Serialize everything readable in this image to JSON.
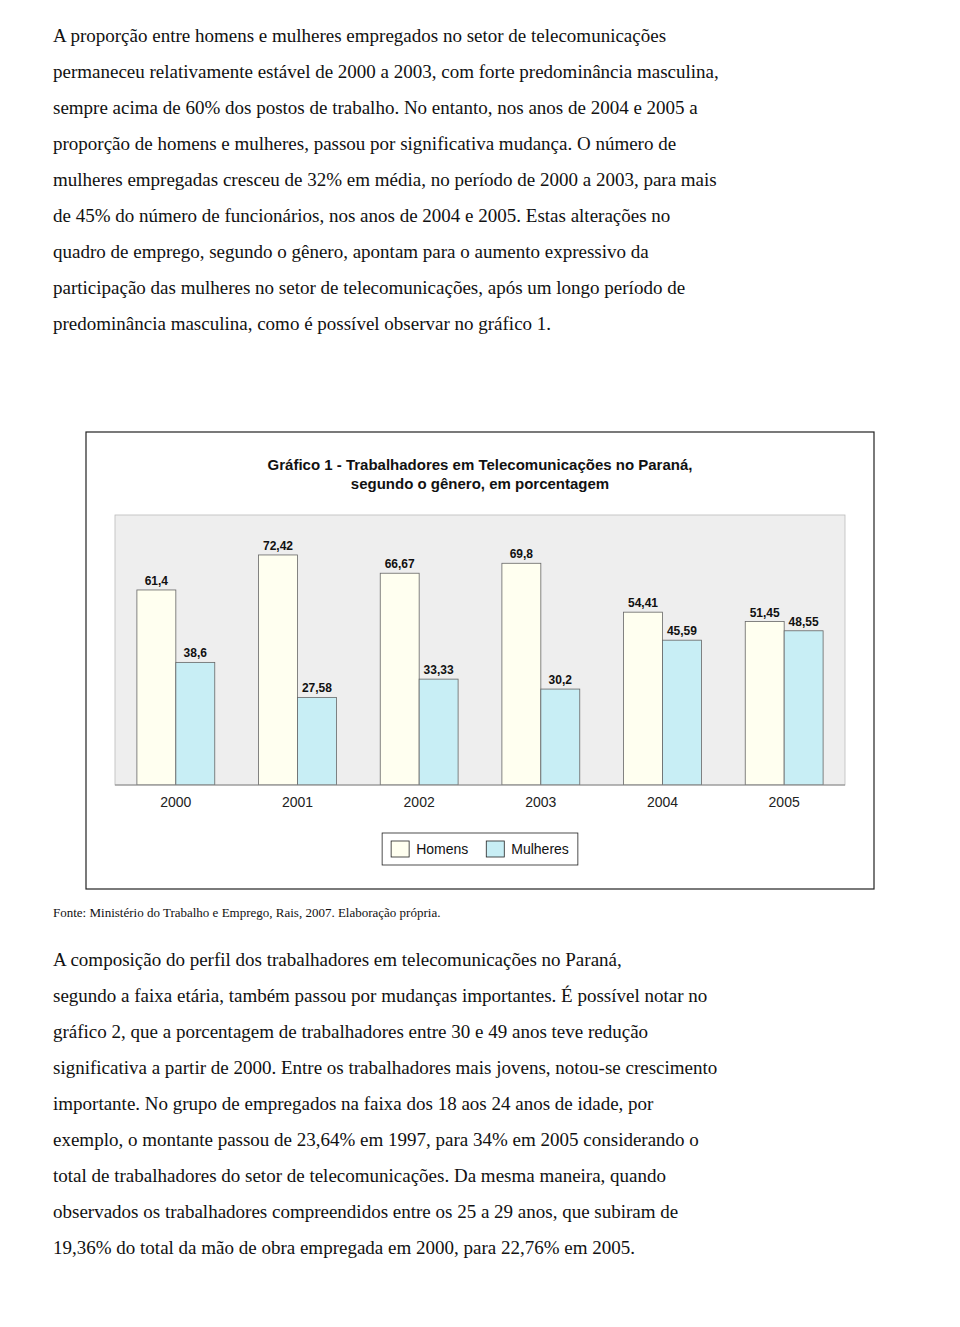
{
  "chart_data": {
    "type": "bar",
    "title": "Gráfico 1 - Trabalhadores em Telecomunicações no Paraná,\nsegundo o gênero, em porcentagem",
    "categories": [
      "2000",
      "2001",
      "2002",
      "2003",
      "2004",
      "2005"
    ],
    "series": [
      {
        "name": "Homens",
        "color": "#FFFFF0",
        "values": [
          61.4,
          72.42,
          66.67,
          69.8,
          54.41,
          51.45
        ],
        "value_labels": [
          "61,4",
          "72,42",
          "66,67",
          "69,8",
          "54,41",
          "51,45"
        ]
      },
      {
        "name": "Mulheres",
        "color": "#C8EEF5",
        "values": [
          38.6,
          27.58,
          33.33,
          30.2,
          45.59,
          48.55
        ],
        "value_labels": [
          "38,6",
          "27,58",
          "33,33",
          "30,2",
          "45,59",
          "48,55"
        ]
      }
    ],
    "ylim": [
      0,
      85
    ],
    "data_labels": true,
    "tick_labels": "x",
    "legend": "bottom"
  },
  "text_before": [
    "A proporção entre homens e mulheres empregados no setor de telecomunicações",
    "permaneceu relativamente estável de 2000 a 2003, com forte predominância masculina,",
    "sempre acima de 60% dos postos de trabalho. No entanto, nos anos de 2004 e 2005 a",
    "proporção de homens e mulheres, passou por significativa mudança. O número de",
    "mulheres empregadas cresceu de 32% em média, no período de 2000 a 2003, para mais",
    "de 45% do número de funcionários, nos anos de 2004 e 2005. Estas alterações no",
    "quadro de emprego, segundo o gênero, apontam para o aumento expressivo da",
    "participação das mulheres no setor de telecomunicações, após um longo período de",
    "predominância masculina, como é possível observar no gráfico 1."
  ],
  "source": "Fonte: Ministério do Trabalho e Emprego, Rais, 2007. Elaboração própria.",
  "text_after": [
    "A composição do perfil dos trabalhadores em telecomunicações no Paraná,",
    "segundo a faixa etária, também passou por mudanças importantes. É possível notar no",
    "gráfico 2, que a porcentagem de trabalhadores entre 30 e 49 anos teve redução",
    "significativa a partir de 2000. Entre os trabalhadores mais jovens, notou-se crescimento",
    "importante. No grupo de empregados na faixa dos 18 aos 24 anos de idade, por",
    "exemplo, o montante passou de 23,64% em 1997, para 34% em 2005 considerando o",
    "total de trabalhadores do setor de telecomunicações. Da mesma maneira, quando",
    "observados os trabalhadores compreendidos entre os 25 a 29 anos, que subiram de",
    "19,36% do total da mão de obra empregada em 2000, para 22,76% em 2005."
  ]
}
